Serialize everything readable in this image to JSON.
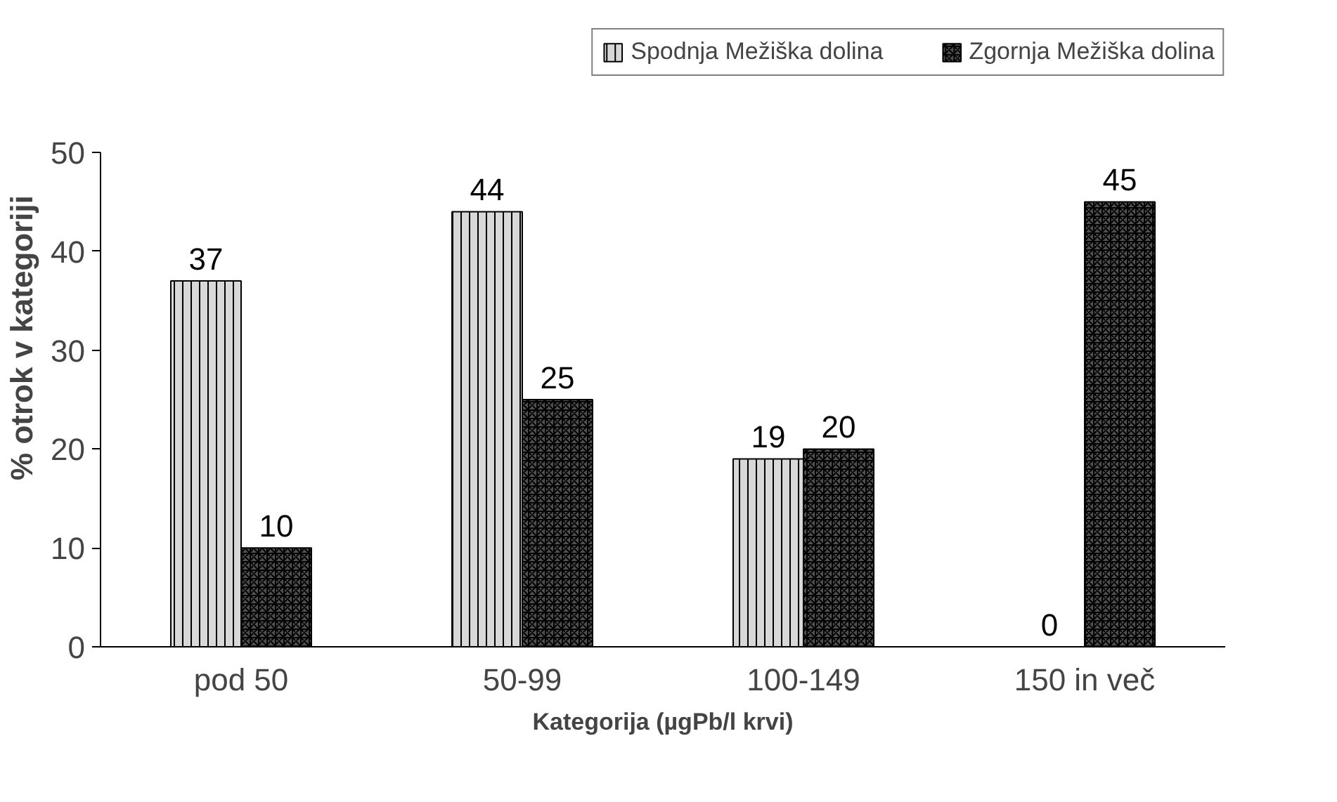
{
  "chart_data": {
    "type": "bar",
    "xlabel": "Kategorija (µgPb/l krvi)",
    "ylabel": "% otrok v kategoriji",
    "categories": [
      "pod 50",
      "50-99",
      "100-149",
      "150 in več"
    ],
    "series": [
      {
        "name": "Spodnja Mežiška dolina",
        "color": "#d8d8d8",
        "values": [
          37,
          44,
          19,
          0
        ]
      },
      {
        "name": "Zgornja Mežiška dolina",
        "color": "#505050",
        "values": [
          10,
          25,
          20,
          45
        ]
      }
    ],
    "ylim": [
      0,
      50
    ],
    "yticks": [
      0,
      10,
      20,
      30,
      40,
      50
    ],
    "grid": false,
    "legend": "top right",
    "data_labels": true
  }
}
